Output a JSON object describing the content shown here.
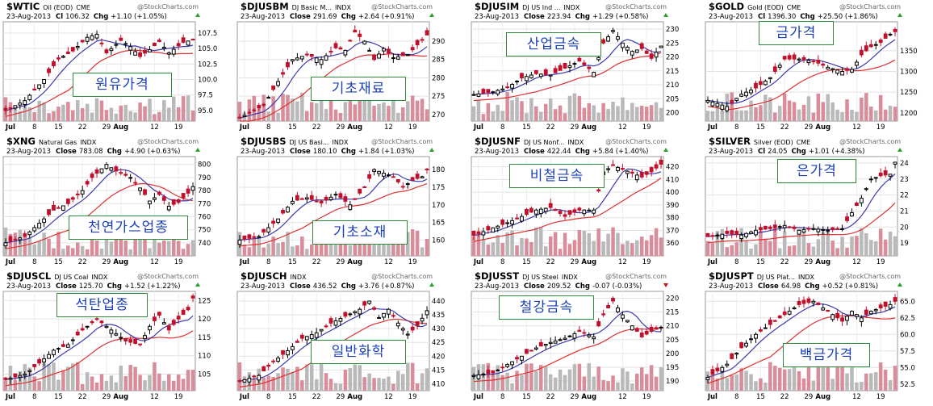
{
  "colors": {
    "up": "#000000",
    "down": "#c0102c",
    "ma_short": "#3a3ab0",
    "ma_long": "#e03030",
    "volume": "#b9b9b9",
    "volume_red": "#d98d9a",
    "box_border": "#2e8b3a",
    "box_text": "#1a3fb8",
    "arrow_up": "#2aa02a",
    "arrow_down": "#d01010"
  },
  "watermark": "@StockCharts.com",
  "x_ticks": [
    "Jul",
    "8",
    "15",
    "22",
    "29",
    "Aug",
    "12",
    "19"
  ],
  "chart_data": [
    {
      "type": "candlestick",
      "symbol": "$WTIC",
      "name": "Oil (EOD)",
      "exchange": "CME",
      "date": "23-Aug-2013",
      "close_label": "Cl",
      "close": "106.32",
      "chg": "+1.10 (+1.05%)",
      "direction": "up",
      "overlay_label": "원유가격",
      "y_ticks": [
        "107.5",
        "105.0",
        "102.5",
        "100.0",
        "97.5",
        "95.0"
      ],
      "ylim": [
        93.3,
        109.3
      ],
      "anchors": [
        [
          0,
          95.0
        ],
        [
          4,
          96.6
        ],
        [
          8,
          100.0
        ],
        [
          11,
          103.3
        ],
        [
          14,
          104.6
        ],
        [
          17,
          106.8
        ],
        [
          19,
          107.3
        ],
        [
          21,
          104.3
        ],
        [
          24,
          106.3
        ],
        [
          26,
          105.3
        ],
        [
          28,
          103.7
        ],
        [
          30,
          104.8
        ],
        [
          32,
          106.1
        ],
        [
          34,
          104.3
        ],
        [
          37,
          106.0
        ],
        [
          39,
          106.4
        ]
      ]
    },
    {
      "type": "candlestick",
      "symbol": "$DJUSBM",
      "name": "DJ Basic M...",
      "exchange": "INDX",
      "date": "23-Aug-2013",
      "close_label": "Close",
      "close": "291.69",
      "chg": "+2.64 (+0.91%)",
      "direction": "up",
      "overlay_label": "기초재료",
      "y_ticks": [
        "290",
        "285",
        "280",
        "275",
        "270"
      ],
      "ylim": [
        268.2,
        295.3
      ],
      "anchors": [
        [
          0,
          269.0
        ],
        [
          5,
          272.5
        ],
        [
          8,
          279.0
        ],
        [
          11,
          285.0
        ],
        [
          14,
          286.3
        ],
        [
          17,
          285.0
        ],
        [
          20,
          288.2
        ],
        [
          22,
          287.5
        ],
        [
          24,
          292.5
        ],
        [
          26,
          290.0
        ],
        [
          28,
          285.0
        ],
        [
          30,
          288.0
        ],
        [
          32,
          285.5
        ],
        [
          35,
          286.3
        ],
        [
          37,
          289.0
        ],
        [
          39,
          291.7
        ]
      ]
    },
    {
      "type": "candlestick",
      "symbol": "$DJUSIM",
      "name": "DJ US Ind ...",
      "exchange": "INDX",
      "date": "23-Aug-2013",
      "close_label": "Close",
      "close": "223.94",
      "chg": "+1.29 (+0.58%)",
      "direction": "up",
      "overlay_label": "산업금속",
      "y_ticks": [
        "230",
        "225",
        "220",
        "215",
        "210",
        "205",
        "200"
      ],
      "ylim": [
        197.0,
        232.6
      ],
      "anchors": [
        [
          0,
          206.5
        ],
        [
          4,
          207.5
        ],
        [
          7,
          209.0
        ],
        [
          10,
          212.5
        ],
        [
          13,
          214.0
        ],
        [
          16,
          213.5
        ],
        [
          19,
          216.0
        ],
        [
          22,
          218.5
        ],
        [
          25,
          214.5
        ],
        [
          27,
          225.0
        ],
        [
          29,
          229.5
        ],
        [
          31,
          225.0
        ],
        [
          33,
          222.0
        ],
        [
          35,
          223.0
        ],
        [
          37,
          219.5
        ],
        [
          39,
          223.9
        ]
      ]
    },
    {
      "type": "candlestick",
      "symbol": "$GOLD",
      "name": "Gold (EOD)",
      "exchange": "CME",
      "date": "23-Aug-2013",
      "close_label": "Cl",
      "close": "1396.30",
      "chg": "+25.50 (+1.86%)",
      "direction": "up",
      "overlay_label": "금가격",
      "y_ticks": [
        "1350",
        "1300",
        "1250",
        "1200"
      ],
      "ylim": [
        1180.0,
        1420.0
      ],
      "anchors": [
        [
          0,
          1230
        ],
        [
          4,
          1215
        ],
        [
          7,
          1245
        ],
        [
          10,
          1260
        ],
        [
          13,
          1285
        ],
        [
          16,
          1330
        ],
        [
          19,
          1330
        ],
        [
          22,
          1325
        ],
        [
          25,
          1310
        ],
        [
          28,
          1300
        ],
        [
          30,
          1305
        ],
        [
          32,
          1340
        ],
        [
          34,
          1360
        ],
        [
          36,
          1370
        ],
        [
          38,
          1390
        ],
        [
          39,
          1396
        ]
      ]
    },
    {
      "type": "candlestick",
      "symbol": "$XNG",
      "name": "Natural Gas",
      "exchange": "INDX",
      "date": "23-Aug-2013",
      "close_label": "Close",
      "close": "783.08",
      "chg": "+4.90 (+0.63%)",
      "direction": "up",
      "overlay_label": "천연가스업종",
      "y_ticks": [
        "800",
        "790",
        "780",
        "770",
        "760",
        "750",
        "740"
      ],
      "ylim": [
        730.0,
        806.0
      ],
      "anchors": [
        [
          0,
          740
        ],
        [
          4,
          745
        ],
        [
          7,
          755
        ],
        [
          10,
          765
        ],
        [
          13,
          770
        ],
        [
          16,
          780
        ],
        [
          18,
          790
        ],
        [
          21,
          800
        ],
        [
          23,
          795
        ],
        [
          26,
          790
        ],
        [
          28,
          782
        ],
        [
          30,
          772
        ],
        [
          32,
          777
        ],
        [
          34,
          768
        ],
        [
          36,
          771
        ],
        [
          38,
          778
        ],
        [
          39,
          783
        ]
      ]
    },
    {
      "type": "candlestick",
      "symbol": "$DJUSBS",
      "name": "DJ US Basi...",
      "exchange": "INDX",
      "date": "23-Aug-2013",
      "close_label": "Close",
      "close": "180.10",
      "chg": "+1.84 (+1.03%)",
      "direction": "up",
      "overlay_label": "기초소재",
      "y_ticks": [
        "180",
        "175",
        "170",
        "165",
        "160"
      ],
      "ylim": [
        155.5,
        183.7
      ],
      "anchors": [
        [
          0,
          160.0
        ],
        [
          4,
          161.0
        ],
        [
          8,
          166.0
        ],
        [
          11,
          171.0
        ],
        [
          14,
          172.0
        ],
        [
          17,
          170.5
        ],
        [
          20,
          173.0
        ],
        [
          23,
          170.0
        ],
        [
          26,
          175.0
        ],
        [
          28,
          180.0
        ],
        [
          30,
          179.0
        ],
        [
          32,
          178.0
        ],
        [
          34,
          175.0
        ],
        [
          36,
          177.0
        ],
        [
          38,
          178.0
        ],
        [
          39,
          180.1
        ]
      ]
    },
    {
      "type": "candlestick",
      "symbol": "$DJUSNF",
      "name": "DJ US Nonf...",
      "exchange": "INDX",
      "date": "23-Aug-2013",
      "close_label": "Close",
      "close": "422.44",
      "chg": "+5.84 (+1.40%)",
      "direction": "up",
      "overlay_label": "비철금속",
      "y_ticks": [
        "420",
        "410",
        "400",
        "390",
        "380",
        "370",
        "360"
      ],
      "ylim": [
        350.0,
        428.0
      ],
      "anchors": [
        [
          0,
          366
        ],
        [
          4,
          372
        ],
        [
          7,
          376
        ],
        [
          10,
          381
        ],
        [
          13,
          386
        ],
        [
          16,
          388
        ],
        [
          19,
          381
        ],
        [
          22,
          386
        ],
        [
          25,
          386
        ],
        [
          27,
          416
        ],
        [
          29,
          421
        ],
        [
          31,
          418
        ],
        [
          33,
          415
        ],
        [
          35,
          412
        ],
        [
          37,
          416
        ],
        [
          39,
          422
        ]
      ]
    },
    {
      "type": "candlestick",
      "symbol": "$SILVER",
      "name": "Silver (EOD)",
      "exchange": "CME",
      "date": "23-Aug-2013",
      "close_label": "Cl",
      "close": "24.05",
      "chg": "+1.01 (+4.38%)",
      "direction": "up",
      "overlay_label": "은가격",
      "y_ticks": [
        "24",
        "23",
        "22",
        "21",
        "20",
        "19"
      ],
      "ylim": [
        18.2,
        24.4
      ],
      "anchors": [
        [
          0,
          19.4
        ],
        [
          4,
          19.6
        ],
        [
          7,
          19.5
        ],
        [
          10,
          19.8
        ],
        [
          13,
          19.9
        ],
        [
          16,
          20.1
        ],
        [
          19,
          19.8
        ],
        [
          22,
          19.9
        ],
        [
          25,
          19.8
        ],
        [
          28,
          19.9
        ],
        [
          30,
          20.9
        ],
        [
          32,
          21.8
        ],
        [
          34,
          23.0
        ],
        [
          36,
          23.2
        ],
        [
          38,
          23.3
        ],
        [
          39,
          24.05
        ]
      ]
    },
    {
      "type": "candlestick",
      "symbol": "$DJUSCL",
      "name": "DJ US Coal",
      "exchange": "INDX",
      "date": "23-Aug-2013",
      "close_label": "Close",
      "close": "125.70",
      "chg": "+1.52 (+1.22%)",
      "direction": "up",
      "overlay_label": "석탄업종",
      "y_ticks": [
        "125",
        "120",
        "115",
        "110",
        "105"
      ],
      "ylim": [
        100.5,
        127.5
      ],
      "anchors": [
        [
          0,
          103.5
        ],
        [
          4,
          105.0
        ],
        [
          7,
          108.0
        ],
        [
          10,
          111.5
        ],
        [
          13,
          113.0
        ],
        [
          16,
          117.0
        ],
        [
          19,
          120.0
        ],
        [
          22,
          117.0
        ],
        [
          25,
          114.0
        ],
        [
          28,
          113.0
        ],
        [
          30,
          118.0
        ],
        [
          32,
          121.0
        ],
        [
          34,
          117.0
        ],
        [
          36,
          120.0
        ],
        [
          38,
          122.5
        ],
        [
          39,
          125.7
        ]
      ]
    },
    {
      "type": "candlestick",
      "symbol": "$DJUSCH",
      "name": "",
      "exchange": "INDX",
      "date": "23-Aug-2013",
      "close_label": "Close",
      "close": "436.52",
      "chg": "+3.76 (+0.87%)",
      "direction": "up",
      "overlay_label": "일반화학",
      "y_ticks": [
        "440",
        "435",
        "430",
        "425",
        "420",
        "415",
        "410"
      ],
      "ylim": [
        407.5,
        443.5
      ],
      "anchors": [
        [
          0,
          411.0
        ],
        [
          4,
          413.0
        ],
        [
          7,
          418.0
        ],
        [
          10,
          422.0
        ],
        [
          13,
          426.5
        ],
        [
          16,
          428.5
        ],
        [
          19,
          432.0
        ],
        [
          22,
          434.5
        ],
        [
          25,
          437.0
        ],
        [
          27,
          440.0
        ],
        [
          29,
          434.0
        ],
        [
          31,
          437.0
        ],
        [
          33,
          432.0
        ],
        [
          35,
          428.0
        ],
        [
          37,
          431.0
        ],
        [
          39,
          436.5
        ]
      ]
    },
    {
      "type": "candlestick",
      "symbol": "$DJUSST",
      "name": "DJ US Steel",
      "exchange": "INDX",
      "date": "23-Aug-2013",
      "close_label": "Close",
      "close": "209.52",
      "chg": "-0.07 (-0.03%)",
      "direction": "down",
      "overlay_label": "철강금속",
      "y_ticks": [
        "220",
        "215",
        "210",
        "205",
        "200",
        "195",
        "190"
      ],
      "ylim": [
        186.5,
        222.5
      ],
      "anchors": [
        [
          0,
          192.0
        ],
        [
          4,
          193.0
        ],
        [
          7,
          196.0
        ],
        [
          10,
          199.0
        ],
        [
          13,
          202.0
        ],
        [
          16,
          204.0
        ],
        [
          19,
          205.5
        ],
        [
          22,
          208.0
        ],
        [
          25,
          206.0
        ],
        [
          27,
          214.0
        ],
        [
          29,
          219.0
        ],
        [
          31,
          214.0
        ],
        [
          33,
          210.0
        ],
        [
          35,
          206.0
        ],
        [
          37,
          208.0
        ],
        [
          39,
          209.5
        ]
      ]
    },
    {
      "type": "candlestick",
      "symbol": "$DJUSPT",
      "name": "DJ US Plat...",
      "exchange": "INDX",
      "date": "23-Aug-2013",
      "close_label": "Close",
      "close": "64.98",
      "chg": "+0.52 (+0.81%)",
      "direction": "up",
      "overlay_label": "백금가격",
      "y_ticks": [
        "65.0",
        "62.5",
        "60.0",
        "57.5",
        "55.0",
        "52.5"
      ],
      "ylim": [
        51.5,
        66.5
      ],
      "anchors": [
        [
          0,
          53.5
        ],
        [
          4,
          55.5
        ],
        [
          7,
          58.0
        ],
        [
          10,
          60.0
        ],
        [
          13,
          61.5
        ],
        [
          16,
          63.0
        ],
        [
          19,
          64.5
        ],
        [
          22,
          65.0
        ],
        [
          25,
          63.5
        ],
        [
          28,
          62.0
        ],
        [
          30,
          63.5
        ],
        [
          32,
          62.5
        ],
        [
          34,
          63.5
        ],
        [
          36,
          64.0
        ],
        [
          38,
          64.5
        ],
        [
          39,
          65.0
        ]
      ]
    }
  ]
}
